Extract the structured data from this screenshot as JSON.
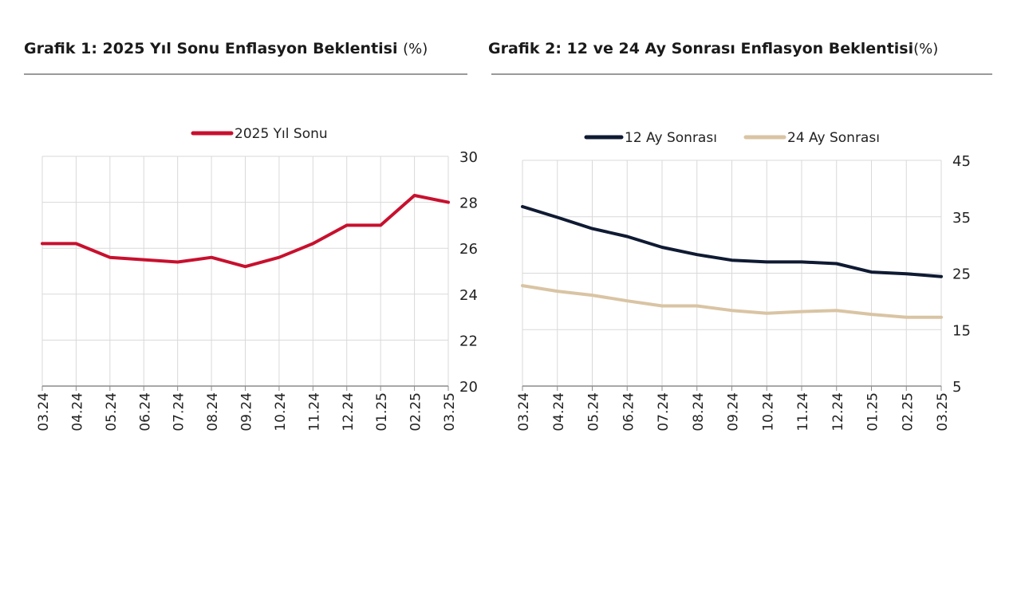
{
  "figure1": {
    "title": "Grafik 1: 2025 Yıl Sonu Enflasyon Beklentisi",
    "unit": "(%)"
  },
  "figure2": {
    "title": "Grafik 2: 12 ve 24 Ay Sonrası Enflasyon Beklentisi",
    "unit": "(%)"
  },
  "colors": {
    "series_2025": "#c8102e",
    "series_12": "#0f1a33",
    "series_24": "#d9c4a3",
    "grid": "#d9d9d9"
  },
  "chart_data": [
    {
      "type": "line",
      "title": "Grafik 1: 2025 Yıl Sonu Enflasyon Beklentisi (%)",
      "categories": [
        "03.24",
        "04.24",
        "05.24",
        "06.24",
        "07.24",
        "08.24",
        "09.24",
        "10.24",
        "11.24",
        "12.24",
        "01.25",
        "02.25",
        "03.25"
      ],
      "series": [
        {
          "name": "2025 Yıl Sonu",
          "color": "#c8102e",
          "values": [
            26.2,
            26.2,
            25.6,
            25.5,
            25.4,
            25.6,
            25.2,
            25.6,
            26.2,
            27.0,
            27.0,
            28.3,
            28.0
          ]
        }
      ],
      "ylim": [
        20,
        30
      ],
      "yticks": [
        20,
        22,
        24,
        26,
        28,
        30
      ],
      "y_axis_side": "right",
      "legend": "top-center",
      "grid": true
    },
    {
      "type": "line",
      "title": "Grafik 2: 12 ve 24 Ay Sonrası Enflasyon Beklentisi (%)",
      "categories": [
        "03.24",
        "04.24",
        "05.24",
        "06.24",
        "07.24",
        "08.24",
        "09.24",
        "10.24",
        "11.24",
        "12.24",
        "01.25",
        "02.25",
        "03.25"
      ],
      "series": [
        {
          "name": "12 Ay Sonrası",
          "color": "#0f1a33",
          "values": [
            36.8,
            34.9,
            32.9,
            31.5,
            29.6,
            28.3,
            27.3,
            27.0,
            27.0,
            26.7,
            25.2,
            24.9,
            24.4
          ]
        },
        {
          "name": "24 Ay Sonrası",
          "color": "#d9c4a3",
          "values": [
            22.8,
            21.8,
            21.1,
            20.1,
            19.2,
            19.2,
            18.4,
            17.9,
            18.2,
            18.4,
            17.7,
            17.2,
            17.2
          ]
        }
      ],
      "ylim": [
        5,
        45
      ],
      "yticks": [
        5,
        15,
        25,
        35,
        45
      ],
      "y_axis_side": "right",
      "legend": "top-center",
      "grid": true
    }
  ]
}
